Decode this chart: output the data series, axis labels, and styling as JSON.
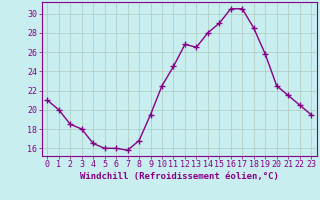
{
  "x": [
    0,
    1,
    2,
    3,
    4,
    5,
    6,
    7,
    8,
    9,
    10,
    11,
    12,
    13,
    14,
    15,
    16,
    17,
    18,
    19,
    20,
    21,
    22,
    23
  ],
  "y": [
    21.0,
    20.0,
    18.5,
    18.0,
    16.5,
    16.0,
    16.0,
    15.8,
    16.8,
    19.5,
    22.5,
    24.5,
    26.8,
    26.5,
    28.0,
    29.0,
    30.5,
    30.5,
    28.5,
    25.8,
    22.5,
    21.5,
    20.5,
    19.5
  ],
  "line_color": "#880088",
  "marker_color": "#880088",
  "bg_color": "#c8eef0",
  "grid_color": "#b0c8c0",
  "xlabel": "Windchill (Refroidissement éolien,°C)",
  "ylabel": "",
  "xlim": [
    -0.5,
    23.5
  ],
  "ylim": [
    15.2,
    31.2
  ],
  "yticks": [
    16,
    18,
    20,
    22,
    24,
    26,
    28,
    30
  ],
  "xticks": [
    0,
    1,
    2,
    3,
    4,
    5,
    6,
    7,
    8,
    9,
    10,
    11,
    12,
    13,
    14,
    15,
    16,
    17,
    18,
    19,
    20,
    21,
    22,
    23
  ],
  "xlabel_fontsize": 6.5,
  "tick_fontsize": 6.0,
  "line_width": 1.0,
  "marker_size": 2.5
}
